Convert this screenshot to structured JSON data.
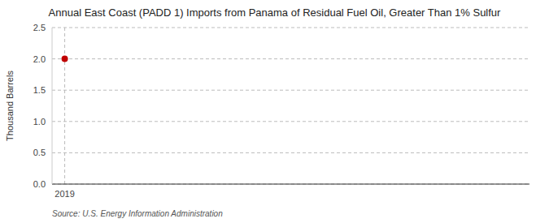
{
  "chart_data": {
    "type": "scatter",
    "title": "Annual East Coast (PADD 1) Imports from Panama of Residual Fuel Oil, Greater Than 1% Sulfur",
    "y_label": "Thousand Barrels",
    "annotations": [
      "Source: U.S. Energy Information Administration"
    ],
    "x": [
      2019
    ],
    "values": [
      2.0
    ],
    "color": "#c00000",
    "marker": "circle",
    "xlim": [
      2018.7,
      2030.0
    ],
    "xticks": [
      2019
    ],
    "ylim": [
      0,
      2.5
    ],
    "yticks": [
      {
        "value": 0.0,
        "label": "0.0"
      },
      0.5,
      {
        "value": 1.0,
        "label": "1.0"
      },
      1.5,
      {
        "value": 2.0,
        "label": "2.0"
      },
      2.5
    ],
    "grid": true
  }
}
